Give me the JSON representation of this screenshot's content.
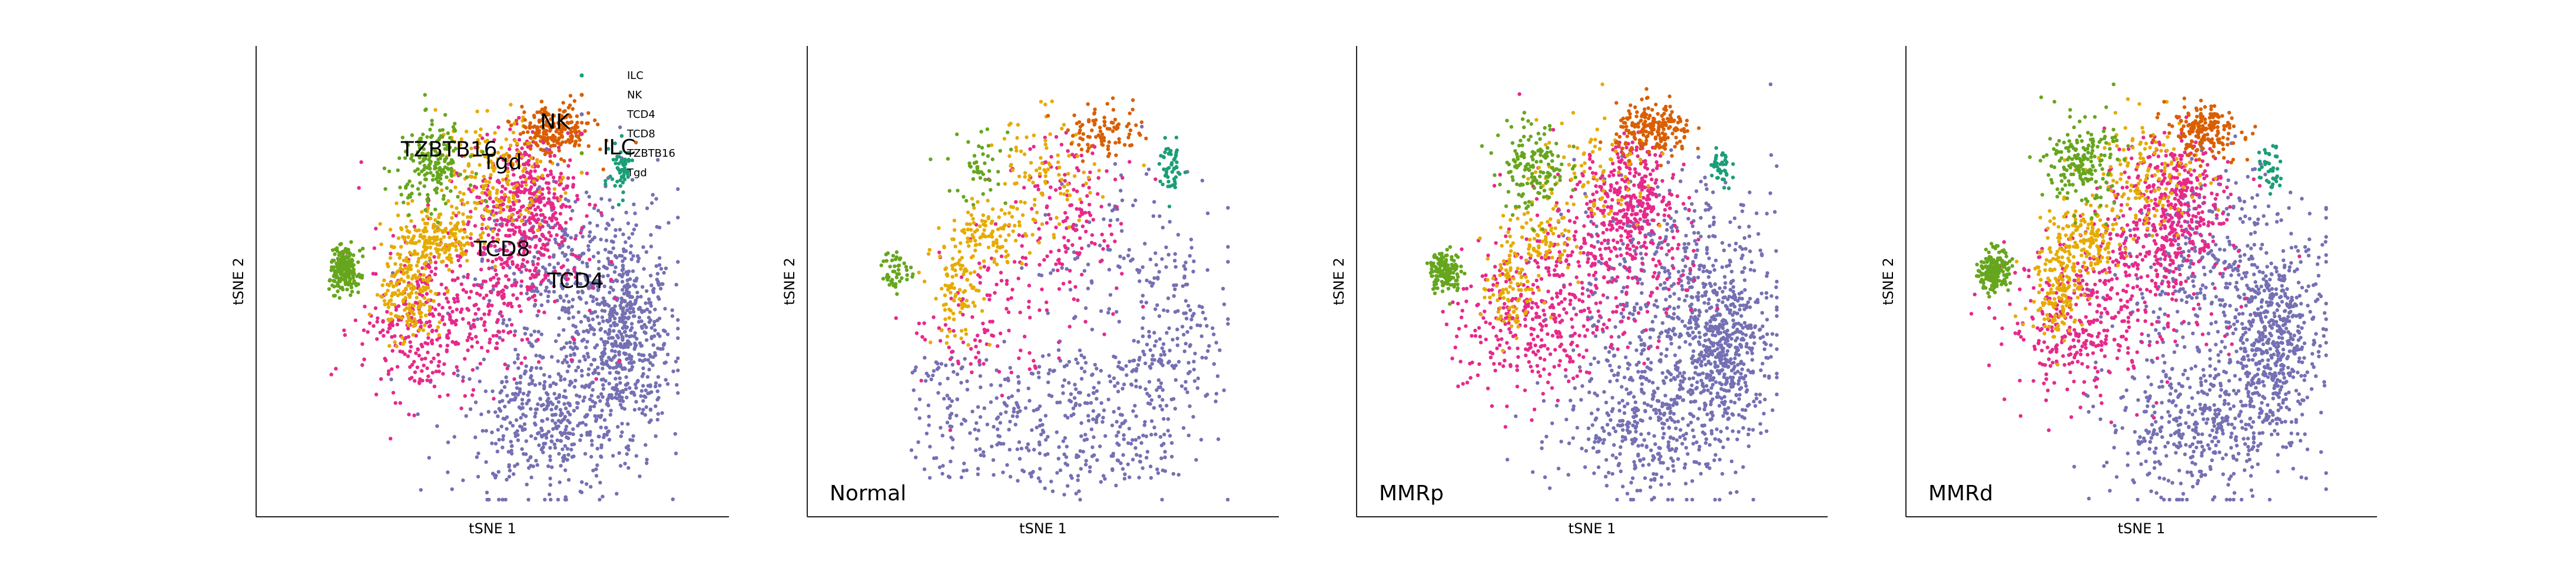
{
  "colors": {
    "ILC": "#1b9e77",
    "NK": "#d95f02",
    "TCD4": "#7570b3",
    "TCD8": "#e7298a",
    "TZBTB16": "#66a61e",
    "Tgd": "#e6ab02"
  },
  "chart_data": [
    {
      "type": "scatter",
      "xlabel": "tSNE 1",
      "ylabel": "tSNE 2",
      "panel_label": "",
      "legend": {
        "entries": [
          "ILC",
          "NK",
          "TCD4",
          "TCD8",
          "TZBTB16",
          "Tgd"
        ],
        "placement": "top-right"
      },
      "cluster_labels": [
        {
          "text": "NK",
          "x": 0.33,
          "y": 0.77
        },
        {
          "text": "TZBTB16",
          "x": -0.23,
          "y": 0.64
        },
        {
          "text": "Tgd",
          "x": 0.05,
          "y": 0.58
        },
        {
          "text": "ILC",
          "x": 0.67,
          "y": 0.65
        },
        {
          "text": "TCD8",
          "x": 0.05,
          "y": 0.17
        },
        {
          "text": "TCD4",
          "x": 0.44,
          "y": 0.02
        }
      ],
      "series": [
        {
          "name": "TCD4",
          "points": 1300
        },
        {
          "name": "TCD8",
          "points": 900
        },
        {
          "name": "Tgd",
          "points": 550
        },
        {
          "name": "TZBTB16",
          "points": 380
        },
        {
          "name": "NK",
          "points": 200
        },
        {
          "name": "ILC",
          "points": 60
        }
      ],
      "grid": false
    },
    {
      "type": "scatter",
      "xlabel": "tSNE 1",
      "ylabel": "tSNE 2",
      "panel_label": "Normal",
      "series": [
        {
          "name": "TCD4",
          "points": 700
        },
        {
          "name": "TCD8",
          "points": 260
        },
        {
          "name": "Tgd",
          "points": 300
        },
        {
          "name": "TZBTB16",
          "points": 90
        },
        {
          "name": "NK",
          "points": 90
        },
        {
          "name": "ILC",
          "points": 50
        }
      ],
      "grid": false
    },
    {
      "type": "scatter",
      "xlabel": "tSNE 1",
      "ylabel": "tSNE 2",
      "panel_label": "MMRp",
      "series": [
        {
          "name": "TCD4",
          "points": 1300
        },
        {
          "name": "TCD8",
          "points": 850
        },
        {
          "name": "Tgd",
          "points": 260
        },
        {
          "name": "TZBTB16",
          "points": 300
        },
        {
          "name": "NK",
          "points": 200
        },
        {
          "name": "ILC",
          "points": 40
        }
      ],
      "grid": false
    },
    {
      "type": "scatter",
      "xlabel": "tSNE 1",
      "ylabel": "tSNE 2",
      "panel_label": "MMRd",
      "series": [
        {
          "name": "TCD4",
          "points": 1250
        },
        {
          "name": "TCD8",
          "points": 900
        },
        {
          "name": "Tgd",
          "points": 450
        },
        {
          "name": "TZBTB16",
          "points": 380
        },
        {
          "name": "NK",
          "points": 180
        },
        {
          "name": "ILC",
          "points": 40
        }
      ],
      "grid": false
    }
  ]
}
